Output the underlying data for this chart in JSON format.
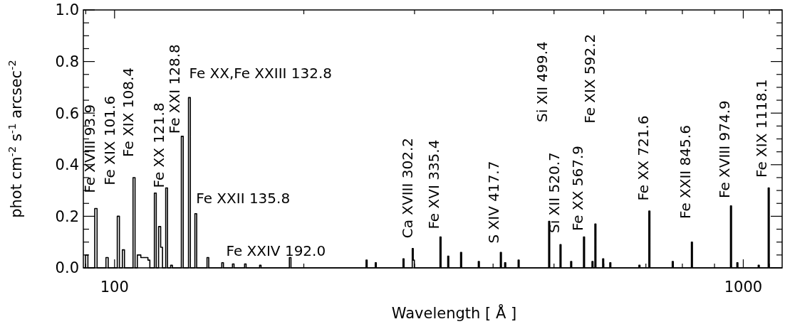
{
  "chart_data": {
    "type": "step",
    "xlabel": "Wavelength [ Å ]",
    "ylabel": "phot cm$^{-2}$ s$^{-1}$ arcsec$^{-2}$",
    "log": "x",
    "grid": false,
    "xlim": [
      89.2,
      1153
    ],
    "xticks": [
      {
        "value": 90,
        "label": null
      },
      100,
      {
        "value": 200,
        "label": null
      },
      {
        "value": 300,
        "label": null
      },
      {
        "value": 400,
        "label": null
      },
      {
        "value": 500,
        "label": null
      },
      {
        "value": 600,
        "label": null
      },
      {
        "value": 700,
        "label": null
      },
      {
        "value": 800,
        "label": null
      },
      {
        "value": 900,
        "label": null
      },
      1000,
      {
        "value": 1100,
        "label": null
      }
    ],
    "ylim": [
      0,
      1
    ],
    "yticks": [
      {
        "value": 0,
        "label": "0.0"
      },
      {
        "value": 0.05,
        "label": null
      },
      {
        "value": 0.1,
        "label": null
      },
      {
        "value": 0.15,
        "label": null
      },
      {
        "value": 0.2,
        "label": "0.2"
      },
      {
        "value": 0.25,
        "label": null
      },
      {
        "value": 0.3,
        "label": null
      },
      {
        "value": 0.35,
        "label": null
      },
      {
        "value": 0.4,
        "label": "0.4"
      },
      {
        "value": 0.45,
        "label": null
      },
      {
        "value": 0.5,
        "label": null
      },
      {
        "value": 0.55,
        "label": null
      },
      {
        "value": 0.6,
        "label": "0.6"
      },
      {
        "value": 0.65,
        "label": null
      },
      {
        "value": 0.7,
        "label": null
      },
      {
        "value": 0.75,
        "label": null
      },
      {
        "value": 0.8,
        "label": "0.8"
      },
      {
        "value": 0.85,
        "label": null
      },
      {
        "value": 0.9,
        "label": null
      },
      {
        "value": 0.95,
        "label": null
      },
      {
        "value": 1,
        "label": "1.0"
      }
    ],
    "series": [
      {
        "color": "#000000",
        "x": [
          89.5,
          89.9,
          90.7,
          93.0,
          93.8,
          96.9,
          97.7,
          101.0,
          101.8,
          102.9,
          103.7,
          107.0,
          107.8,
          108.7,
          110.1,
          111.8,
          113.0,
          113.8,
          115.7,
          116.5,
          117.5,
          118.4,
          119.2,
          120.6,
          121.4,
          122.8,
          123.6,
          127.7,
          128.6,
          131.1,
          132.0,
          134.2,
          135.1,
          140.3,
          141.2,
          148.1,
          149.0,
          154.0,
          154.9,
          161.0,
          161.9,
          170.1,
          171.0,
          189.7,
          190.8,
          251.2,
          252.2,
          259.8,
          260.8,
          287.6,
          288.7,
          297.5,
          298.6,
          299.8,
          329.3,
          330.6,
          338.8,
          340.1,
          355.1,
          356.5,
          378.9,
          380.4,
          410.8,
          412.4,
          417.3,
          419.0,
          438.4,
          440.1,
          490.3,
          492.2,
          511.1,
          513.1,
          531.4,
          533.5,
          557.0,
          559.2,
          574.6,
          576.8,
          580.7,
          583.0,
          597.5,
          599.8,
          613.3,
          615.7,
          682.3,
          685.0,
          707.6,
          710.4,
          770.9,
          773.9,
          826.9,
          830.1,
          954.2,
          957.9,
          976.8,
          980.6,
          1056.2,
          1060.3,
          1095.5,
          1099.8,
          1150
        ],
        "values": [
          0,
          0.05,
          0,
          0.23,
          0,
          0.04,
          0,
          0.2,
          0,
          0.07,
          0,
          0.35,
          0,
          0.05,
          0.04,
          0.04,
          0.03,
          0,
          0.29,
          0,
          0.16,
          0.08,
          0,
          0.31,
          0,
          0.01,
          0,
          0.51,
          0,
          0.66,
          0,
          0.21,
          0,
          0.04,
          0,
          0.02,
          0,
          0.015,
          0,
          0.015,
          0,
          0.01,
          0,
          0.04,
          0,
          0.03,
          0,
          0.02,
          0,
          0.035,
          0,
          0.075,
          0.03,
          0,
          0.12,
          0,
          0.045,
          0,
          0.06,
          0,
          0.025,
          0,
          0.06,
          0,
          0.02,
          0,
          0.03,
          0,
          0.18,
          0,
          0.09,
          0,
          0.025,
          0,
          0.12,
          0,
          0.025,
          0,
          0.17,
          0,
          0.035,
          0,
          0.02,
          0,
          0.01,
          0,
          0.22,
          0,
          0.025,
          0,
          0.1,
          0,
          0.24,
          0,
          0.02,
          0,
          0.01,
          0,
          0.31,
          0,
          0
        ]
      }
    ],
    "annotations": [
      "Fe XVIII 93.9",
      "Fe XIX 101.6",
      "Fe XIX 108.4",
      "Fe XX 121.8",
      "Fe XXI 128.8",
      "Fe XX,Fe XXIII 132.8",
      "Fe XXII 135.8",
      "Fe XXIV 192.0",
      "Ca XVIII 302.2",
      "Fe XVI 335.4",
      "S XIV 417.7",
      "Si XII 499.4",
      "Si XII 520.7",
      "Fe XX 567.9",
      "Fe XIX 592.2",
      "Fe XX 721.6",
      "Fe XXII 845.6",
      "Fe XVIII 974.9",
      "Fe XIX 1118.1"
    ]
  }
}
